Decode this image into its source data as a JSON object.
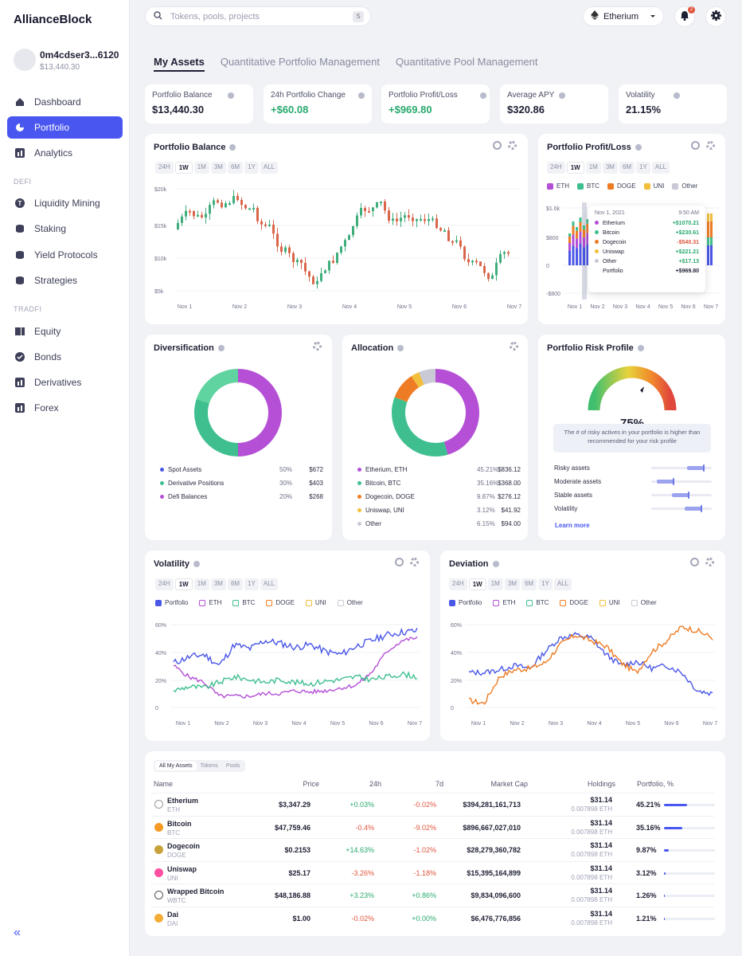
{
  "app": {
    "logo": "AllianceBlock",
    "user_name": "0m4cdser3...6120",
    "user_balance": "$13,440.30"
  },
  "nav": {
    "items": [
      {
        "label": "Dashboard",
        "icon": "home-icon"
      },
      {
        "label": "Portfolio",
        "icon": "pie-icon",
        "active": true
      },
      {
        "label": "Analytics",
        "icon": "bar-chart-icon"
      }
    ],
    "defi_label": "DEFI",
    "defi": [
      {
        "label": "Liquidity Mining",
        "icon": "tether-icon"
      },
      {
        "label": "Staking",
        "icon": "stack-icon"
      },
      {
        "label": "Yield Protocols",
        "icon": "stack-icon"
      },
      {
        "label": "Strategies",
        "icon": "stack-icon"
      }
    ],
    "tradfi_label": "TRADFI",
    "tradfi": [
      {
        "label": "Equity",
        "icon": "equity-icon"
      },
      {
        "label": "Bonds",
        "icon": "badge-icon"
      },
      {
        "label": "Derivatives",
        "icon": "bar-chart-icon"
      },
      {
        "label": "Forex",
        "icon": "bar-chart-icon"
      }
    ],
    "collapse": "«"
  },
  "topbar": {
    "search_placeholder": "Tokens, pools, projects",
    "search_kbd": "S",
    "network": "Etherium",
    "notif_count": "2"
  },
  "tabs": [
    "My Assets",
    "Quantitative Portfolio Management",
    "Quantitative Pool Management"
  ],
  "stats": [
    {
      "label": "Portfolio Balance",
      "value": "$13,440.30",
      "color": "#1d1f33"
    },
    {
      "label": "24h Portfolio Change",
      "value": "+$60.08",
      "color": "#29a96e"
    },
    {
      "label": "Portfolio Profit/Loss",
      "value": "+$969.80",
      "color": "#29a96e"
    },
    {
      "label": "Average APY",
      "value": "$320.86",
      "color": "#1d1f33"
    },
    {
      "label": "Volatility",
      "value": "21.15%",
      "color": "#1d1f33"
    }
  ],
  "periods": [
    "24H",
    "1W",
    "1M",
    "3M",
    "6M",
    "1Y",
    "ALL"
  ],
  "balance_card": {
    "title": "Portfolio Balance",
    "yticks": [
      "$20k",
      "$15k",
      "$10k",
      "$5k"
    ],
    "xticks": [
      "Nov 1",
      "Nov 2",
      "Nov 3",
      "Nov 4",
      "Nov 5",
      "Nov 6",
      "Nov 7"
    ]
  },
  "pl_card": {
    "title": "Portfolio Profit/Loss",
    "legend": [
      "ETH",
      "BTC",
      "DOGE",
      "UNI",
      "Other"
    ],
    "yticks": [
      "$1.6k",
      "$800",
      "0",
      "-$800"
    ],
    "xticks": [
      "Nov 1",
      "Nov 2",
      "Nov 3",
      "Nov 4",
      "Nov 5",
      "Nov 6",
      "Nov 7"
    ],
    "tooltip": {
      "date": "Nov 1, 2021",
      "time": "9:50 AM",
      "rows": [
        {
          "name": "Etherium",
          "value": "+$1070.21",
          "color": "#b44fd6",
          "vc": "#29a96e"
        },
        {
          "name": "Bitcoin",
          "value": "+$230.61",
          "color": "#3fbf8f",
          "vc": "#29a96e"
        },
        {
          "name": "Dogecoin",
          "value": "-$540.31",
          "color": "#ee7c24",
          "vc": "#e0553d"
        },
        {
          "name": "Uniswap",
          "value": "+$221.21",
          "color": "#f1bf3c",
          "vc": "#29a96e"
        },
        {
          "name": "Other",
          "value": "+$17.13",
          "color": "#c9cad6",
          "vc": "#29a96e"
        },
        {
          "name": "Portfolio",
          "value": "+$969.80",
          "color": "",
          "vc": "#1d1f33"
        }
      ]
    }
  },
  "diversification": {
    "title": "Diversification",
    "items": [
      {
        "label": "Spot Assets",
        "pct": "50%",
        "amt": "$672",
        "color": "#4a57e6"
      },
      {
        "label": "Derivative Positions",
        "pct": "30%",
        "amt": "$403",
        "color": "#3fbf8f"
      },
      {
        "label": "Defi Balances",
        "pct": "20%",
        "amt": "$268",
        "color": "#b44fd6"
      }
    ]
  },
  "allocation": {
    "title": "Allocation",
    "items": [
      {
        "label": "Etherium, ETH",
        "pct": "45.21%",
        "amt": "$836.12",
        "color": "#b44fd6"
      },
      {
        "label": "Bitcoin, BTC",
        "pct": "35.16%",
        "amt": "$368.00",
        "color": "#3fbf8f"
      },
      {
        "label": "Dogecoin, DOGE",
        "pct": "9.87%",
        "amt": "$276.12",
        "color": "#ee7c24"
      },
      {
        "label": "Uniswap, UNI",
        "pct": "3.12%",
        "amt": "$41.92",
        "color": "#f1bf3c"
      },
      {
        "label": "Other",
        "pct": "6.15%",
        "amt": "$94.00",
        "color": "#c9cad6"
      }
    ]
  },
  "risk": {
    "title": "Portfolio Risk Profile",
    "value": "75%",
    "note": "The # of risky actives in your portfolio is higher than recommended for your risk profile",
    "rows": [
      {
        "label": "Risky assets",
        "level": 0.85
      },
      {
        "label": "Moderate assets",
        "level": 0.35
      },
      {
        "label": "Stable assets",
        "level": 0.6
      },
      {
        "label": "Volatility",
        "level": 0.82
      }
    ],
    "link": "Learn more"
  },
  "volatility": {
    "title": "Volatility",
    "legend": [
      "Portfolio",
      "ETH",
      "BTC",
      "DOGE",
      "UNI",
      "Other"
    ],
    "yticks": [
      "60%",
      "40%",
      "20%",
      "0"
    ],
    "xticks": [
      "Nov 1",
      "Nov 2",
      "Nov 3",
      "Nov 4",
      "Nov 5",
      "Nov 6",
      "Nov 7"
    ]
  },
  "deviation": {
    "title": "Deviation",
    "legend": [
      "Portfolio",
      "ETH",
      "BTC",
      "DOGE",
      "UNI",
      "Other"
    ],
    "yticks": [
      "60%",
      "40%",
      "20%",
      "0"
    ],
    "xticks": [
      "Nov 1",
      "Nov 2",
      "Nov 3",
      "Nov 4",
      "Nov 5",
      "Nov 6",
      "Nov 7"
    ]
  },
  "legend_colors": [
    "#4a57e6",
    "#b44fd6",
    "#3fbf8f",
    "#ee7c24",
    "#f1bf3c",
    "#c9cad6"
  ],
  "assets": {
    "tabs": [
      "All My Assets",
      "Tokens",
      "Pools"
    ],
    "headers": [
      "Name",
      "Price",
      "24h",
      "7d",
      "Market Cap",
      "Holdings",
      "Portfolio, %"
    ],
    "rows": [
      {
        "name": "Etherium",
        "sym": "ETH",
        "price": "$3,347.29",
        "d": "+0.03%",
        "w": "-0.02%",
        "cap": "$394,281,161,713",
        "h1": "$31.14",
        "h2": "0.007898 ETH",
        "pf": "45.21%",
        "pfv": 0.4521,
        "coin": "#ffffff",
        "cborder": "#999"
      },
      {
        "name": "Bitcoin",
        "sym": "BTC",
        "price": "$47,759.46",
        "d": "-0.4%",
        "w": "-9.02%",
        "cap": "$896,667,027,010",
        "h1": "$31.14",
        "h2": "0.007898 ETH",
        "pf": "35.16%",
        "pfv": 0.3516,
        "coin": "#f59a23",
        "cborder": "#f59a23"
      },
      {
        "name": "Dogecoin",
        "sym": "DOGE",
        "price": "$0.2153",
        "d": "+14.63%",
        "w": "-1.02%",
        "cap": "$28,279,360,782",
        "h1": "$31.14",
        "h2": "0.007898 ETH",
        "pf": "9.87%",
        "pfv": 0.0987,
        "coin": "#c9a13a",
        "cborder": "#c9a13a"
      },
      {
        "name": "Uniswap",
        "sym": "UNI",
        "price": "$25.17",
        "d": "-3.26%",
        "w": "-1.18%",
        "cap": "$15,395,164,899",
        "h1": "$31.14",
        "h2": "0.007898 ETH",
        "pf": "3.12%",
        "pfv": 0.0312,
        "coin": "#ff4fa0",
        "cborder": "#ff4fa0"
      },
      {
        "name": "Wrapped Bitcoin",
        "sym": "WBTC",
        "price": "$48,186.88",
        "d": "+3.23%",
        "w": "+0.86%",
        "cap": "$9,834,096,600",
        "h1": "$31.14",
        "h2": "0.007898 ETH",
        "pf": "1.26%",
        "pfv": 0.0126,
        "coin": "#ffffff",
        "cborder": "#555"
      },
      {
        "name": "Dai",
        "sym": "DAI",
        "price": "$1.00",
        "d": "-0.02%",
        "w": "+0.00%",
        "cap": "$6,476,776,856",
        "h1": "$31.14",
        "h2": "0.007898 ETH",
        "pf": "1.21%",
        "pfv": 0.0121,
        "coin": "#f5ac37",
        "cborder": "#f5ac37"
      }
    ]
  }
}
